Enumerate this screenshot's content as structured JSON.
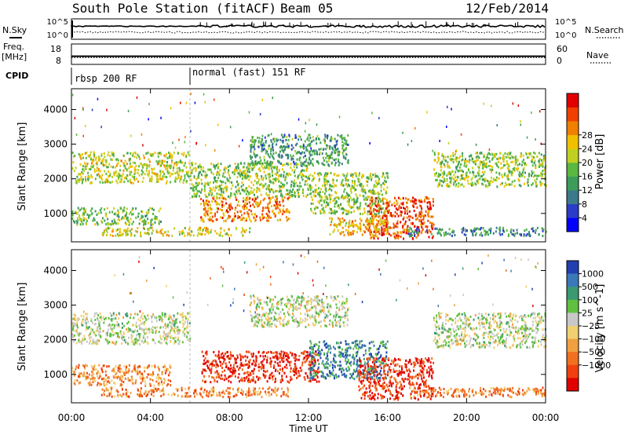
{
  "header": {
    "station": "South Pole Station (fitACF)",
    "beam": "Beam 05",
    "date": "12/Feb/2014"
  },
  "top_panels": {
    "nsky_label": "N.Sky",
    "nsky_ticks": [
      "10^5",
      "10^0"
    ],
    "nsearch_label": "N.Search",
    "nsearch_ticks": [
      "10^5",
      "10^0"
    ],
    "freq_label": "Freq.",
    "freq_unit": "[MHz]",
    "freq_ticks": [
      "18",
      "8"
    ],
    "nave_label": "Nave",
    "nave_ticks": [
      "60",
      "0"
    ],
    "cpid_label": "CPID",
    "cpid_segments": [
      {
        "label": "rbsp 200 RF",
        "start_hour": 0,
        "end_hour": 6
      },
      {
        "label": "normal (fast) 151 RF",
        "start_hour": 6,
        "end_hour": 24
      }
    ],
    "freq_value_mhz": 12,
    "nave_value": 20
  },
  "chart_data": [
    {
      "type": "heatmap",
      "title": "",
      "xlabel": "",
      "ylabel": "Slant Range [km]",
      "x_range_hours": [
        0,
        24
      ],
      "ylim": [
        180,
        4600
      ],
      "yticks": [
        "1000",
        "2000",
        "3000",
        "4000"
      ],
      "colorbar": {
        "label": "Power [dB]",
        "ticks": [
          "4",
          "8",
          "12",
          "16",
          "20",
          "24",
          "28"
        ],
        "colors": [
          "#0000ff",
          "#2a3cc8",
          "#3a7a8a",
          "#3c9c5a",
          "#58b840",
          "#c0d020",
          "#f0c000",
          "#f08000",
          "#f04000",
          "#e00000"
        ]
      },
      "echo_bands": [
        {
          "x0": 0.0,
          "x1": 6.0,
          "y0": 1900,
          "y1": 2800,
          "level": 0.55
        },
        {
          "x0": 0.0,
          "x1": 4.5,
          "y0": 700,
          "y1": 1200,
          "level": 0.45
        },
        {
          "x0": 1.5,
          "x1": 9.0,
          "y0": 380,
          "y1": 620,
          "level": 0.6
        },
        {
          "x0": 6.5,
          "x1": 11.0,
          "y0": 800,
          "y1": 1500,
          "level": 0.75
        },
        {
          "x0": 6.0,
          "x1": 12.0,
          "y0": 1500,
          "y1": 2500,
          "level": 0.5
        },
        {
          "x0": 9.0,
          "x1": 14.0,
          "y0": 2400,
          "y1": 3300,
          "level": 0.35
        },
        {
          "x0": 12.0,
          "x1": 16.0,
          "y0": 1000,
          "y1": 2200,
          "level": 0.5
        },
        {
          "x0": 15.0,
          "x1": 18.3,
          "y0": 300,
          "y1": 1500,
          "level": 0.85
        },
        {
          "x0": 13.0,
          "x1": 16.0,
          "y0": 400,
          "y1": 900,
          "level": 0.65
        },
        {
          "x0": 18.3,
          "x1": 24.0,
          "y0": 1800,
          "y1": 2800,
          "level": 0.5
        },
        {
          "x0": 17.0,
          "x1": 24.0,
          "y0": 380,
          "y1": 620,
          "level": 0.3
        }
      ]
    },
    {
      "type": "heatmap",
      "title": "",
      "xlabel": "Time UT",
      "ylabel": "Slant Range [km]",
      "x_range_hours": [
        0,
        24
      ],
      "xticks": [
        "00:00",
        "04:00",
        "08:00",
        "12:00",
        "16:00",
        "20:00",
        "00:00"
      ],
      "ylim": [
        180,
        4600
      ],
      "yticks": [
        "1000",
        "2000",
        "3000",
        "4000"
      ],
      "colorbar": {
        "label": "Velocity [m s^-1]",
        "ticks": [
          "1000",
          "500",
          "100",
          "25",
          "−25",
          "−100",
          "−500",
          "−1000"
        ],
        "colors": [
          "#2040b0",
          "#3a78b8",
          "#3a9a70",
          "#60c040",
          "#c8c8c8",
          "#f0d070",
          "#f0a040",
          "#f07020",
          "#f04010",
          "#e00000"
        ]
      },
      "echo_bands": [
        {
          "x0": 0.0,
          "x1": 6.0,
          "y0": 1900,
          "y1": 2800,
          "level": 0.45
        },
        {
          "x0": 0.0,
          "x1": 5.0,
          "y0": 700,
          "y1": 1300,
          "level": 0.7
        },
        {
          "x0": 1.5,
          "x1": 11.0,
          "y0": 380,
          "y1": 650,
          "level": 0.72
        },
        {
          "x0": 6.5,
          "x1": 12.5,
          "y0": 800,
          "y1": 1700,
          "level": 0.9
        },
        {
          "x0": 9.0,
          "x1": 14.0,
          "y0": 2400,
          "y1": 3300,
          "level": 0.45
        },
        {
          "x0": 12.0,
          "x1": 16.0,
          "y0": 900,
          "y1": 2000,
          "level": 0.2
        },
        {
          "x0": 14.5,
          "x1": 18.3,
          "y0": 300,
          "y1": 1500,
          "level": 0.88
        },
        {
          "x0": 18.3,
          "x1": 24.0,
          "y0": 1800,
          "y1": 2800,
          "level": 0.45
        },
        {
          "x0": 17.0,
          "x1": 24.0,
          "y0": 380,
          "y1": 650,
          "level": 0.72
        }
      ]
    }
  ]
}
